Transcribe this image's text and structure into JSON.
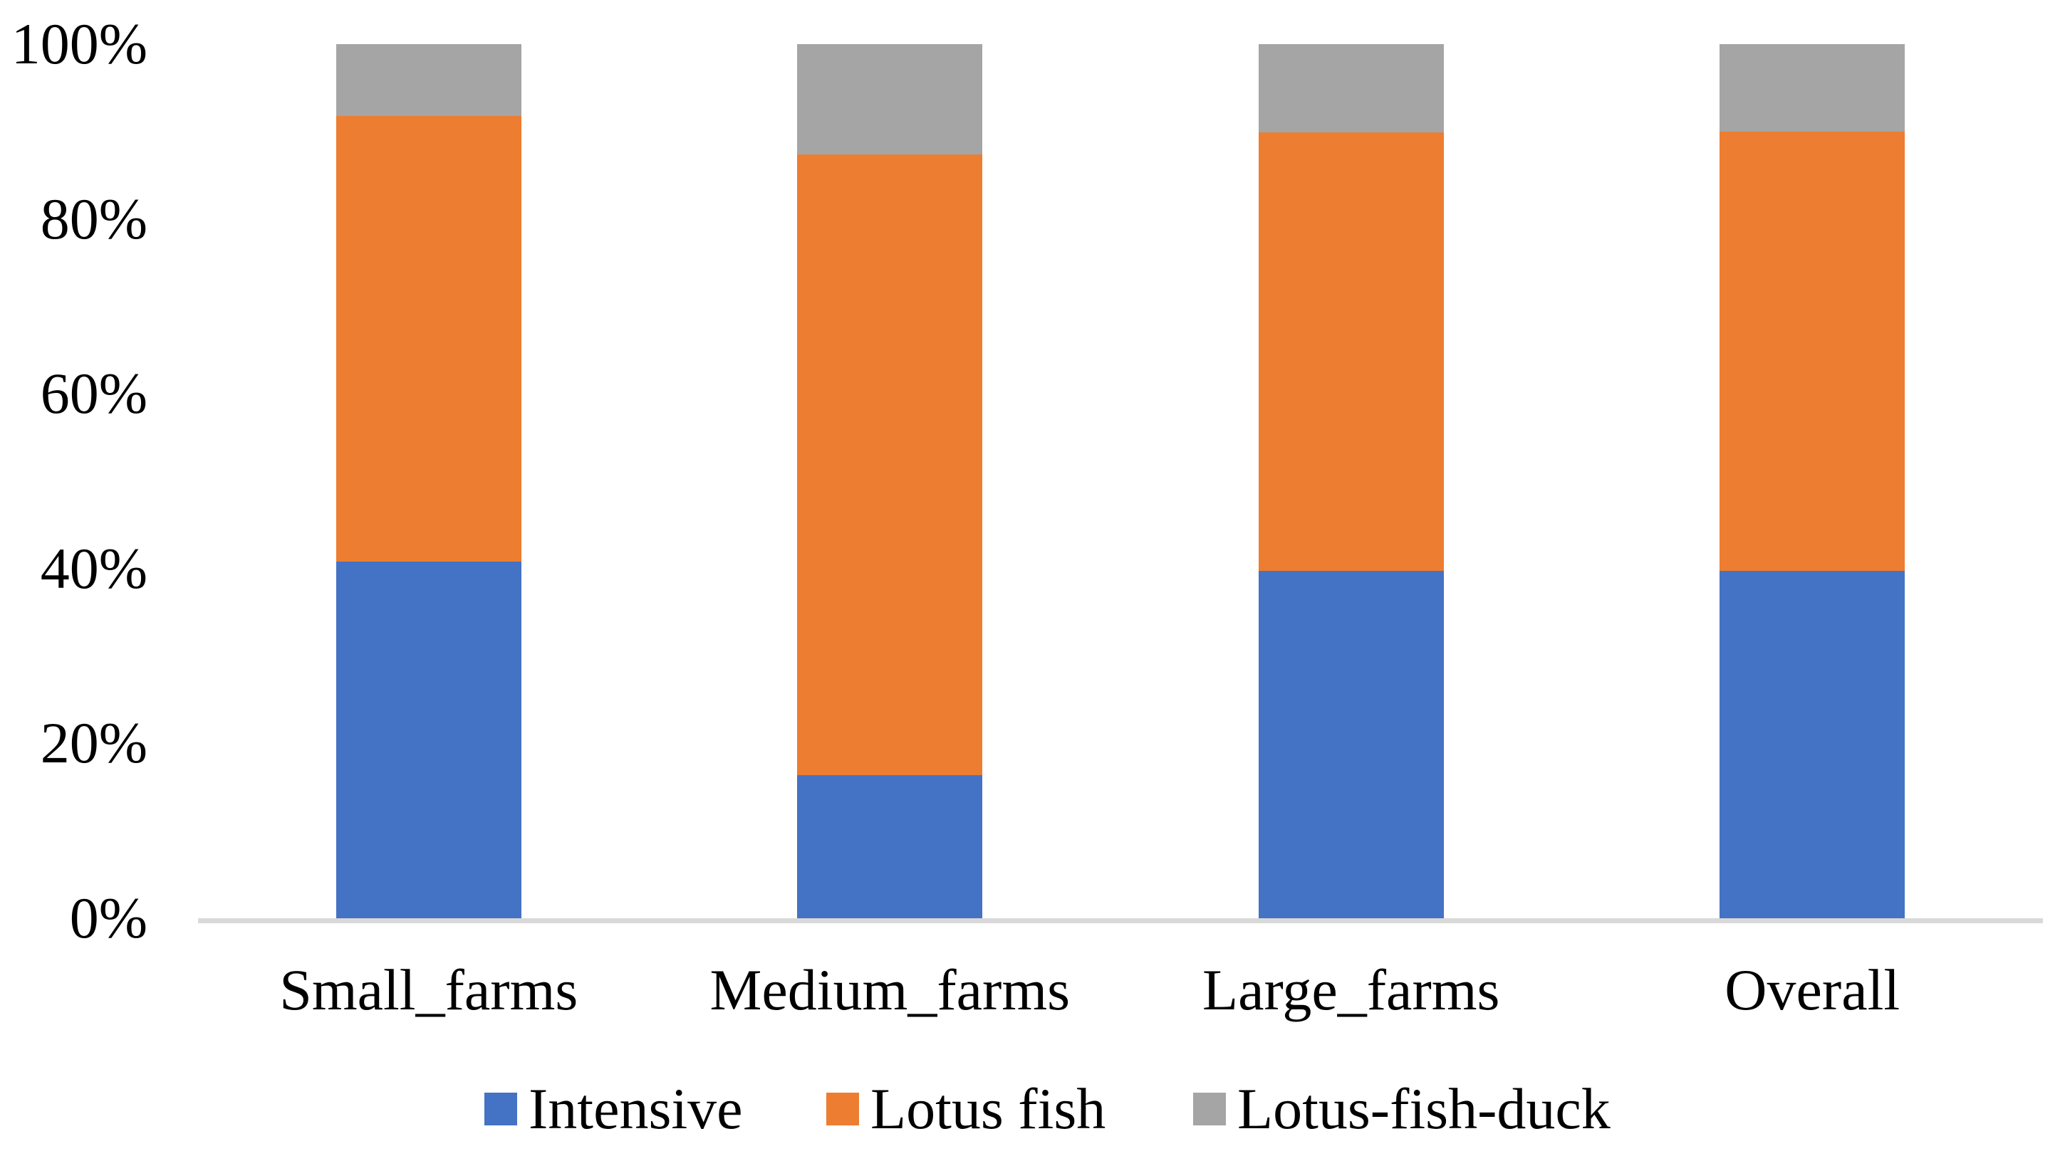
{
  "chart_data": {
    "type": "bar",
    "stacked": true,
    "percent_stacked": true,
    "title": "",
    "xlabel": "",
    "ylabel": "",
    "categories": [
      "Small_farms",
      "Medium_farms",
      "Large_farms",
      "Overall"
    ],
    "series": [
      {
        "name": "Intensive",
        "color": "#4472C4",
        "values": [
          40.8,
          16.4,
          39.7,
          39.7
        ]
      },
      {
        "name": "Lotus fish",
        "color": "#ED7D31",
        "values": [
          51.0,
          71.0,
          50.2,
          50.3
        ]
      },
      {
        "name": "Lotus-fish-duck",
        "color": "#A5A5A5",
        "values": [
          8.2,
          12.6,
          10.1,
          10.0
        ]
      }
    ],
    "y_ticks": [
      "0%",
      "20%",
      "40%",
      "60%",
      "80%",
      "100%"
    ],
    "ylim": [
      0,
      100
    ],
    "grid": false,
    "legend_position": "bottom",
    "axis_line_color": "#D9D9D9",
    "text_color": "#000000",
    "background_color": "#FFFFFF"
  }
}
